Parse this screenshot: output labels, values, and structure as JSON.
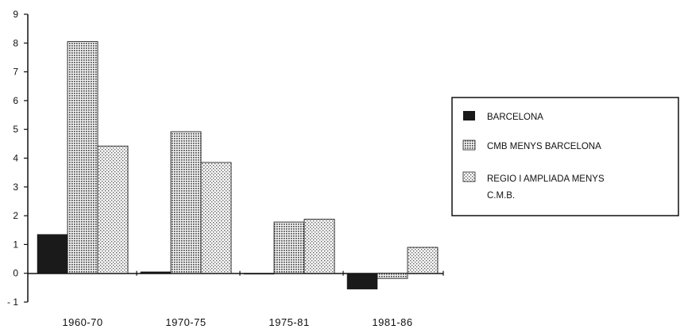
{
  "chart_data": {
    "type": "bar",
    "categories": [
      "1960-70",
      "1970-75",
      "1975-81",
      "1981-86"
    ],
    "series": [
      {
        "name": "BARCELONA",
        "values": [
          1.35,
          0.05,
          0.0,
          -0.55
        ],
        "color": "#1a1a1a"
      },
      {
        "name": "CMB MENYS BARCELONA",
        "values": [
          8.05,
          4.92,
          1.78,
          -0.18
        ],
        "color": "#cfcfcf"
      },
      {
        "name": "REGIO I AMPLIADA MENYS C.M.B.",
        "values": [
          4.42,
          3.85,
          1.88,
          0.9
        ],
        "color": "#e2e2e2"
      }
    ],
    "yticks": [
      "9",
      "8",
      "7",
      "6",
      "5",
      "4",
      "3",
      "2",
      "1",
      "0",
      "- 1"
    ],
    "ylim": [
      -1,
      9
    ],
    "legend": {
      "position": "right",
      "items": [
        "BARCELONA",
        "CMB MENYS BARCELONA",
        "REGIO I AMPLIADA MENYS",
        "C.M.B."
      ]
    },
    "title": "",
    "xlabel": "",
    "ylabel": ""
  }
}
